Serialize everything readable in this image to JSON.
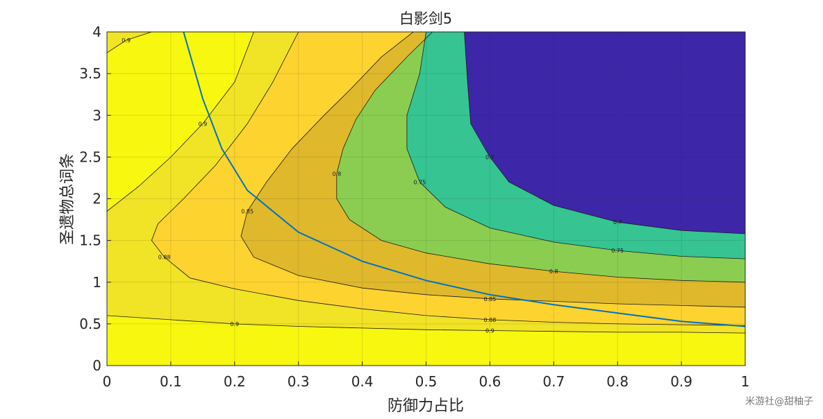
{
  "chart_data": {
    "type": "contour",
    "title": "白影剑5",
    "xlabel": "防御力占比",
    "ylabel": "圣遗物总词条",
    "xlim": [
      0,
      1
    ],
    "ylim": [
      0,
      4
    ],
    "x_ticks": [
      "0",
      "0.1",
      "0.2",
      "0.3",
      "0.4",
      "0.5",
      "0.6",
      "0.7",
      "0.8",
      "0.9",
      "1"
    ],
    "y_ticks": [
      "0",
      "0.5",
      "1",
      "1.5",
      "2",
      "2.5",
      "3",
      "3.5",
      "4"
    ],
    "grid": true,
    "contour_levels": [
      0.7,
      0.75,
      0.8,
      0.85,
      0.88,
      0.9
    ],
    "contour_colors": {
      "lt_0.7": "#3e26a8",
      "0.7_0.75": "#35c492",
      "0.75_0.8": "#8bcd50",
      "0.8_0.85": "#dfb82c",
      "0.85_0.88": "#fdd330",
      "0.88_0.9": "#f1e325",
      "gt_0.9": "#f7f70f"
    },
    "contour_lines": [
      {
        "level": 0.9,
        "points": [
          [
            0,
            0.6
          ],
          [
            0.1,
            0.55
          ],
          [
            0.2,
            0.5
          ],
          [
            0.3,
            0.47
          ],
          [
            0.4,
            0.45
          ],
          [
            0.5,
            0.43
          ],
          [
            0.6,
            0.42
          ],
          [
            0.7,
            0.41
          ],
          [
            0.8,
            0.4
          ],
          [
            0.9,
            0.4
          ],
          [
            1,
            0.39
          ]
        ]
      },
      {
        "level": 0.9,
        "points": [
          [
            0,
            1.85
          ],
          [
            0.05,
            2.15
          ],
          [
            0.1,
            2.5
          ],
          [
            0.15,
            2.9
          ],
          [
            0.2,
            3.4
          ],
          [
            0.23,
            4
          ]
        ]
      },
      {
        "level": 0.9,
        "points": [
          [
            0,
            3.75
          ],
          [
            0.03,
            3.9
          ],
          [
            0.07,
            4
          ]
        ]
      },
      {
        "level": 0.88,
        "points": [
          [
            1,
            0.48
          ],
          [
            0.9,
            0.49
          ],
          [
            0.8,
            0.5
          ],
          [
            0.7,
            0.52
          ],
          [
            0.6,
            0.55
          ],
          [
            0.5,
            0.6
          ],
          [
            0.4,
            0.68
          ],
          [
            0.3,
            0.78
          ],
          [
            0.2,
            0.92
          ],
          [
            0.13,
            1.05
          ],
          [
            0.09,
            1.3
          ],
          [
            0.07,
            1.5
          ],
          [
            0.08,
            1.7
          ],
          [
            0.12,
            2.0
          ],
          [
            0.17,
            2.4
          ],
          [
            0.22,
            2.9
          ],
          [
            0.26,
            3.4
          ],
          [
            0.3,
            4
          ]
        ]
      },
      {
        "level": 0.85,
        "points": [
          [
            1,
            0.7
          ],
          [
            0.9,
            0.72
          ],
          [
            0.8,
            0.74
          ],
          [
            0.7,
            0.77
          ],
          [
            0.6,
            0.8
          ],
          [
            0.5,
            0.85
          ],
          [
            0.4,
            0.93
          ],
          [
            0.3,
            1.08
          ],
          [
            0.23,
            1.3
          ],
          [
            0.21,
            1.55
          ],
          [
            0.22,
            1.85
          ],
          [
            0.25,
            2.2
          ],
          [
            0.29,
            2.6
          ],
          [
            0.34,
            3.0
          ],
          [
            0.38,
            3.3
          ],
          [
            0.43,
            3.7
          ],
          [
            0.48,
            4
          ]
        ]
      },
      {
        "level": 0.8,
        "points": [
          [
            1,
            1.0
          ],
          [
            0.9,
            1.02
          ],
          [
            0.8,
            1.06
          ],
          [
            0.7,
            1.13
          ],
          [
            0.6,
            1.22
          ],
          [
            0.5,
            1.35
          ],
          [
            0.43,
            1.5
          ],
          [
            0.38,
            1.75
          ],
          [
            0.36,
            2.0
          ],
          [
            0.36,
            2.3
          ],
          [
            0.37,
            2.6
          ],
          [
            0.39,
            2.95
          ],
          [
            0.42,
            3.3
          ],
          [
            0.47,
            3.7
          ],
          [
            0.51,
            4
          ]
        ]
      },
      {
        "level": 0.75,
        "points": [
          [
            1,
            1.28
          ],
          [
            0.9,
            1.31
          ],
          [
            0.8,
            1.38
          ],
          [
            0.7,
            1.48
          ],
          [
            0.6,
            1.65
          ],
          [
            0.53,
            1.9
          ],
          [
            0.49,
            2.2
          ],
          [
            0.47,
            2.6
          ],
          [
            0.47,
            3.0
          ],
          [
            0.49,
            3.5
          ],
          [
            0.5,
            4
          ]
        ]
      },
      {
        "level": 0.7,
        "points": [
          [
            1,
            1.58
          ],
          [
            0.9,
            1.62
          ],
          [
            0.8,
            1.72
          ],
          [
            0.7,
            1.92
          ],
          [
            0.63,
            2.2
          ],
          [
            0.6,
            2.5
          ],
          [
            0.57,
            2.9
          ],
          [
            0.565,
            3.4
          ],
          [
            0.56,
            4
          ]
        ]
      }
    ],
    "label_values": [
      "0.9",
      "0.88",
      "0.85",
      "0.8",
      "0.75",
      "0.7"
    ],
    "overlay_curve": {
      "color": "#0072bd",
      "points": [
        [
          0.12,
          4
        ],
        [
          0.15,
          3.2
        ],
        [
          0.18,
          2.6
        ],
        [
          0.22,
          2.1
        ],
        [
          0.3,
          1.6
        ],
        [
          0.4,
          1.25
        ],
        [
          0.5,
          1.02
        ],
        [
          0.6,
          0.85
        ],
        [
          0.7,
          0.73
        ],
        [
          0.8,
          0.63
        ],
        [
          0.9,
          0.53
        ],
        [
          1,
          0.47
        ]
      ]
    }
  },
  "watermark": "米游社@甜柚子"
}
